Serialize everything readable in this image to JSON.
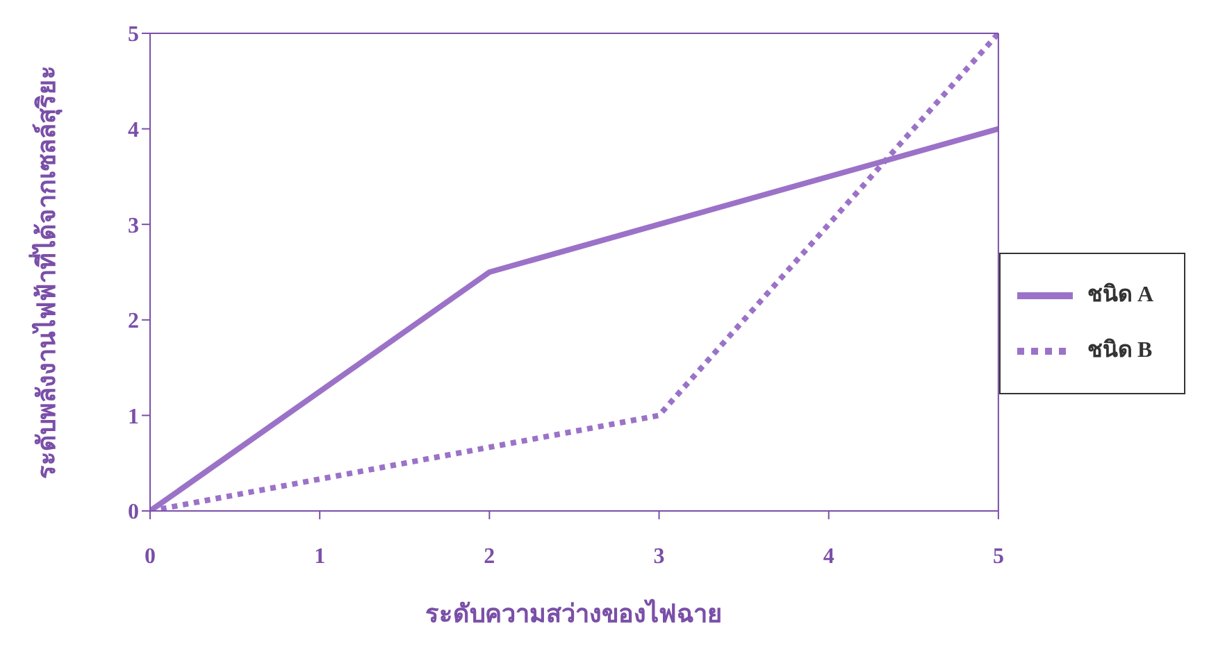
{
  "chart_data": {
    "type": "line",
    "xlabel": "ระดับความสว่างของไฟฉาย",
    "ylabel": "ระดับพลังงานไฟฟ้าที่ได้จากเซลล์สุริยะ",
    "series": [
      {
        "name": "ชนิด A",
        "color": "#9b72c8",
        "line_style": "solid",
        "x": [
          0,
          2,
          3,
          5
        ],
        "values": [
          0,
          2.5,
          3,
          4
        ]
      },
      {
        "name": "ชนิด B",
        "color": "#9b72c8",
        "line_style": "dotted",
        "x": [
          0,
          3,
          5
        ],
        "values": [
          0,
          1,
          5
        ]
      }
    ],
    "xlim": [
      0,
      5
    ],
    "xticks": [
      0,
      1,
      2,
      3,
      4,
      5
    ],
    "ylim": [
      0,
      5
    ],
    "yticks": [
      0,
      1,
      2,
      3,
      4,
      5
    ],
    "grid": false,
    "legend": "right",
    "marker": "none"
  }
}
